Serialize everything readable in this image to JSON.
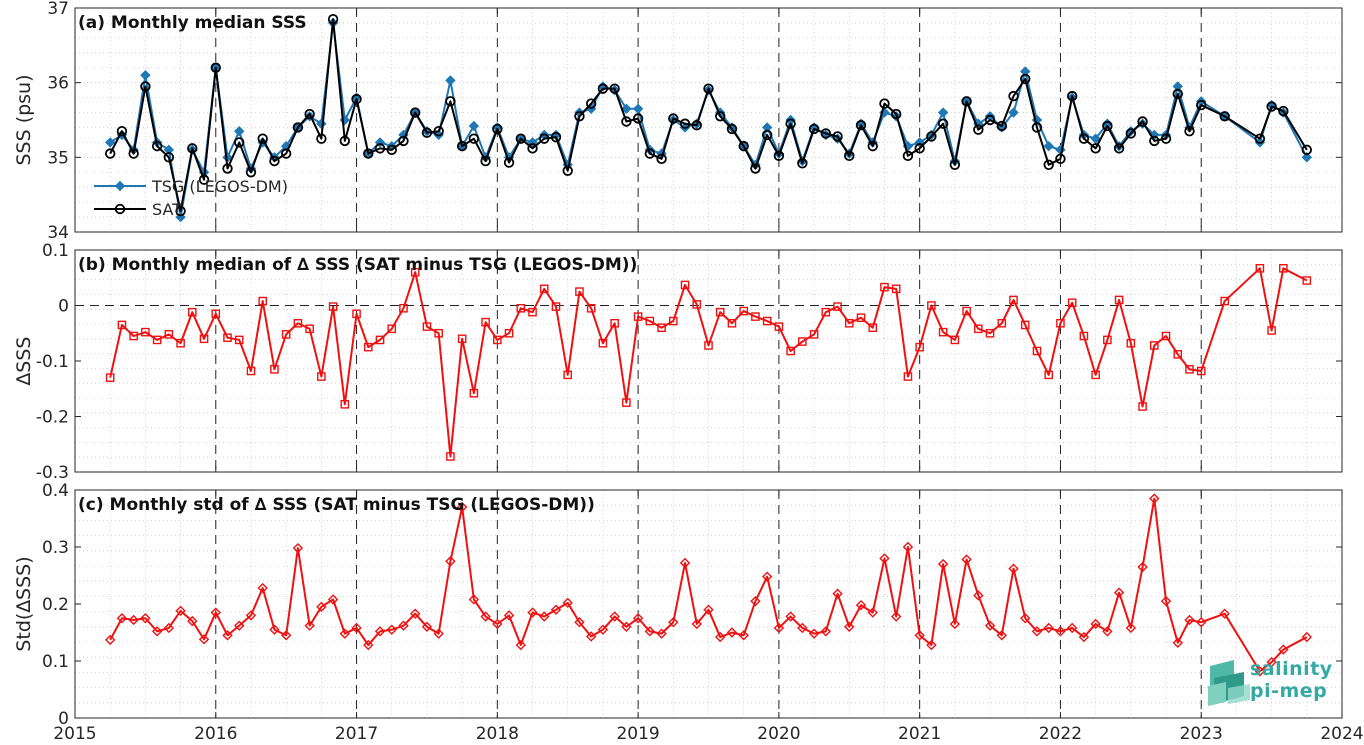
{
  "chart_data": [
    {
      "type": "line",
      "title": "(a) Monthly median SSS",
      "ylabel": "SSS (psu)",
      "ylim": [
        34,
        37
      ],
      "yticks": [
        34,
        35,
        36,
        37
      ],
      "xlim": [
        "2015-01",
        "2024-01"
      ],
      "xticks": [
        "2015",
        "2016",
        "2017",
        "2018",
        "2019",
        "2020",
        "2021",
        "2022",
        "2023",
        "2024"
      ],
      "grid": "dotted",
      "legend_position": "bottom-left",
      "x": [
        "2015-04",
        "2015-05",
        "2015-06",
        "2015-07",
        "2015-08",
        "2015-09",
        "2015-10",
        "2015-11",
        "2015-12",
        "2016-01",
        "2016-02",
        "2016-03",
        "2016-04",
        "2016-05",
        "2016-06",
        "2016-07",
        "2016-08",
        "2016-09",
        "2016-10",
        "2016-11",
        "2016-12",
        "2017-01",
        "2017-02",
        "2017-03",
        "2017-04",
        "2017-05",
        "2017-06",
        "2017-07",
        "2017-08",
        "2017-09",
        "2017-10",
        "2017-11",
        "2017-12",
        "2018-01",
        "2018-02",
        "2018-03",
        "2018-04",
        "2018-05",
        "2018-06",
        "2018-07",
        "2018-08",
        "2018-09",
        "2018-10",
        "2018-11",
        "2018-12",
        "2019-01",
        "2019-02",
        "2019-03",
        "2019-04",
        "2019-05",
        "2019-06",
        "2019-07",
        "2019-08",
        "2019-09",
        "2019-10",
        "2019-11",
        "2019-12",
        "2020-01",
        "2020-02",
        "2020-03",
        "2020-04",
        "2020-05",
        "2020-06",
        "2020-07",
        "2020-08",
        "2020-09",
        "2020-10",
        "2020-11",
        "2020-12",
        "2021-01",
        "2021-02",
        "2021-03",
        "2021-04",
        "2021-05",
        "2021-06",
        "2021-07",
        "2021-08",
        "2021-09",
        "2021-10",
        "2021-11",
        "2021-12",
        "2022-01",
        "2022-02",
        "2022-03",
        "2022-04",
        "2022-05",
        "2022-06",
        "2022-07",
        "2022-08",
        "2022-09",
        "2022-10",
        "2022-11",
        "2022-12",
        "2023-01",
        "2023-03",
        "2023-06",
        "2023-07",
        "2023-08",
        "2023-10"
      ],
      "series": [
        {
          "name": "TSG (LEGOS-DM)",
          "color": "#1f77b4",
          "marker": "diamond",
          "values": [
            35.2,
            35.3,
            35.1,
            36.1,
            35.2,
            35.1,
            34.2,
            35.1,
            34.8,
            36.2,
            35.0,
            35.35,
            34.85,
            35.2,
            35.0,
            35.15,
            35.4,
            35.55,
            35.45,
            36.8,
            35.5,
            35.8,
            35.05,
            35.2,
            35.15,
            35.3,
            35.6,
            35.35,
            35.3,
            36.03,
            35.15,
            35.42,
            35.0,
            35.4,
            35.0,
            35.25,
            35.2,
            35.3,
            35.3,
            34.9,
            35.6,
            35.65,
            35.95,
            35.9,
            35.65,
            35.65,
            35.1,
            35.05,
            35.5,
            35.4,
            35.45,
            35.9,
            35.6,
            35.4,
            35.15,
            34.9,
            35.4,
            35.05,
            35.5,
            34.95,
            35.4,
            35.3,
            35.25,
            35.05,
            35.45,
            35.2,
            35.6,
            35.55,
            35.15,
            35.2,
            35.3,
            35.6,
            34.95,
            35.75,
            35.45,
            35.55,
            35.4,
            35.6,
            36.15,
            35.5,
            35.15,
            35.1,
            35.8,
            35.3,
            35.25,
            35.45,
            35.15,
            35.35,
            35.45,
            35.3,
            35.3,
            35.95,
            35.4,
            35.75,
            35.55,
            35.2,
            35.7,
            35.6,
            35.0
          ]
        },
        {
          "name": "SAT",
          "color": "#000000",
          "marker": "circle",
          "values": [
            35.05,
            35.35,
            35.05,
            35.95,
            35.15,
            35.0,
            34.28,
            35.12,
            34.7,
            36.2,
            34.85,
            35.2,
            34.8,
            35.25,
            34.95,
            35.05,
            35.4,
            35.58,
            35.25,
            36.85,
            35.22,
            35.78,
            35.05,
            35.12,
            35.1,
            35.22,
            35.6,
            35.33,
            35.35,
            35.75,
            35.15,
            35.25,
            34.95,
            35.38,
            34.93,
            35.25,
            35.12,
            35.25,
            35.27,
            34.82,
            35.55,
            35.72,
            35.92,
            35.92,
            35.48,
            35.52,
            35.05,
            34.98,
            35.52,
            35.45,
            35.43,
            35.92,
            35.55,
            35.38,
            35.15,
            34.85,
            35.3,
            35.02,
            35.45,
            34.92,
            35.38,
            35.32,
            35.28,
            35.02,
            35.43,
            35.15,
            35.72,
            35.58,
            35.02,
            35.12,
            35.28,
            35.45,
            34.9,
            35.75,
            35.37,
            35.5,
            35.42,
            35.82,
            36.05,
            35.4,
            34.9,
            34.98,
            35.82,
            35.25,
            35.12,
            35.42,
            35.12,
            35.32,
            35.48,
            35.22,
            35.25,
            35.85,
            35.35,
            35.7,
            35.55,
            35.25,
            35.68,
            35.62,
            35.1
          ]
        }
      ]
    },
    {
      "type": "line",
      "title": "(b) Monthly median of ∆ SSS (SAT minus TSG (LEGOS-DM))",
      "ylabel": "∆SSS",
      "ylim": [
        -0.3,
        0.1
      ],
      "yticks": [
        -0.3,
        -0.2,
        -0.1,
        0,
        0.1
      ],
      "ytick_labels": [
        "-0.3",
        "-0.2",
        "-0.1",
        "0",
        "0.1"
      ],
      "xlim": [
        "2015-01",
        "2024-01"
      ],
      "xticks": [
        "2015",
        "2016",
        "2017",
        "2018",
        "2019",
        "2020",
        "2021",
        "2022",
        "2023",
        "2024"
      ],
      "grid": "dotted",
      "zero_line": "dashed",
      "series": [
        {
          "color": "#ee1111",
          "marker": "square",
          "values": [
            -0.13,
            -0.035,
            -0.055,
            -0.048,
            -0.062,
            -0.052,
            -0.068,
            -0.012,
            -0.06,
            -0.015,
            -0.058,
            -0.062,
            -0.118,
            0.008,
            -0.115,
            -0.052,
            -0.032,
            -0.042,
            -0.128,
            -0.002,
            -0.178,
            -0.015,
            -0.075,
            -0.062,
            -0.042,
            -0.005,
            0.06,
            -0.038,
            -0.05,
            -0.272,
            -0.06,
            -0.158,
            -0.03,
            -0.062,
            -0.05,
            -0.005,
            -0.012,
            0.03,
            -0.002,
            -0.125,
            0.025,
            -0.005,
            -0.068,
            -0.032,
            -0.175,
            -0.02,
            -0.028,
            -0.04,
            -0.028,
            0.037,
            0.002,
            -0.072,
            -0.012,
            -0.032,
            -0.01,
            -0.02,
            -0.028,
            -0.038,
            -0.082,
            -0.065,
            -0.052,
            -0.012,
            -0.002,
            -0.032,
            -0.022,
            -0.04,
            0.033,
            0.03,
            -0.128,
            -0.075,
            0.0,
            -0.048,
            -0.062,
            -0.01,
            -0.042,
            -0.05,
            -0.032,
            0.01,
            -0.035,
            -0.082,
            -0.125,
            -0.032,
            0.005,
            -0.055,
            -0.125,
            -0.062,
            0.01,
            -0.068,
            -0.182,
            -0.072,
            -0.055,
            -0.088,
            -0.115,
            -0.118,
            0.008,
            0.067,
            -0.045,
            0.067,
            0.045
          ]
        }
      ]
    },
    {
      "type": "line",
      "title": "(c) Monthly std of ∆ SSS (SAT minus TSG (LEGOS-DM))",
      "ylabel": "Std(∆SSS)",
      "ylim": [
        0,
        0.4
      ],
      "yticks": [
        0,
        0.1,
        0.2,
        0.3,
        0.4
      ],
      "ytick_labels": [
        "0",
        "0.1",
        "0.2",
        "0.3",
        "0.4"
      ],
      "xlim": [
        "2015-01",
        "2024-01"
      ],
      "xticks": [
        "2015",
        "2016",
        "2017",
        "2018",
        "2019",
        "2020",
        "2021",
        "2022",
        "2023",
        "2024"
      ],
      "xtick_labels": [
        "2015",
        "2016",
        "2017",
        "2018",
        "2019",
        "2020",
        "2021",
        "2022",
        "2023",
        "2024"
      ],
      "grid": "dotted",
      "series": [
        {
          "color": "#ee1111",
          "marker": "diamond",
          "values": [
            0.137,
            0.175,
            0.172,
            0.175,
            0.152,
            0.158,
            0.188,
            0.17,
            0.138,
            0.185,
            0.145,
            0.162,
            0.18,
            0.228,
            0.155,
            0.145,
            0.298,
            0.162,
            0.195,
            0.208,
            0.148,
            0.158,
            0.128,
            0.152,
            0.155,
            0.162,
            0.183,
            0.16,
            0.148,
            0.275,
            0.37,
            0.208,
            0.178,
            0.165,
            0.18,
            0.128,
            0.185,
            0.178,
            0.19,
            0.202,
            0.168,
            0.143,
            0.155,
            0.178,
            0.16,
            0.175,
            0.152,
            0.148,
            0.168,
            0.272,
            0.165,
            0.19,
            0.142,
            0.15,
            0.145,
            0.205,
            0.248,
            0.158,
            0.178,
            0.158,
            0.148,
            0.152,
            0.218,
            0.16,
            0.198,
            0.185,
            0.28,
            0.178,
            0.3,
            0.145,
            0.128,
            0.27,
            0.165,
            0.278,
            0.215,
            0.162,
            0.145,
            0.262,
            0.175,
            0.152,
            0.158,
            0.152,
            0.158,
            0.142,
            0.165,
            0.152,
            0.22,
            0.158,
            0.265,
            0.385,
            0.205,
            0.132,
            0.172,
            0.168,
            0.183,
            0.082,
            0.098,
            0.12,
            0.142
          ]
        }
      ]
    }
  ],
  "logo": {
    "line1": "salinity",
    "line2": "pi-mep"
  }
}
